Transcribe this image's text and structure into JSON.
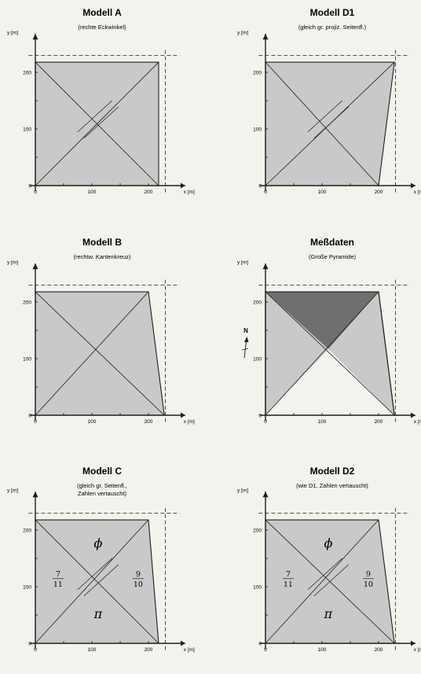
{
  "colors": {
    "fill": "#c9c9c9",
    "shade": "#6f6f6f",
    "white_face": "#f4f2ec",
    "line": "#1e1e1e"
  },
  "units": {
    "x_label": "x [m]",
    "y_label": "y [m]"
  },
  "ticks": {
    "x": [
      "0",
      "100",
      "200"
    ],
    "y": [
      "0",
      "100",
      "200"
    ]
  },
  "panels": [
    {
      "id": "modell-a",
      "title": "Modell A",
      "subtitle": [
        "(rechte Eckwinkel)"
      ],
      "corners": [
        [
          0,
          0
        ],
        [
          218,
          0
        ],
        [
          218,
          218
        ],
        [
          0,
          218
        ]
      ],
      "apex": [
        111,
        117
      ],
      "crossed": true,
      "shaded_face": null,
      "symbols": null,
      "north_arrow": false
    },
    {
      "id": "modell-d1",
      "title": "Modell D1",
      "subtitle": [
        "(gleich gr. projiz. Seitenfl.)"
      ],
      "corners": [
        [
          0,
          0
        ],
        [
          200,
          0
        ],
        [
          228,
          218
        ],
        [
          0,
          218
        ]
      ],
      "apex": [
        111,
        117
      ],
      "crossed": true,
      "shaded_face": null,
      "symbols": null,
      "north_arrow": false
    },
    {
      "id": "modell-b",
      "title": "Modell B",
      "subtitle": [
        "(rechtw. Kantenkreuz)"
      ],
      "corners": [
        [
          0,
          0
        ],
        [
          228,
          0
        ],
        [
          200,
          218
        ],
        [
          0,
          218
        ]
      ],
      "apex": [
        111,
        117
      ],
      "crossed": false,
      "shaded_face": null,
      "symbols": null,
      "north_arrow": false
    },
    {
      "id": "messdaten",
      "title": "Meßdaten",
      "subtitle": [
        "(Große Pyramide)"
      ],
      "corners": [
        [
          0,
          0
        ],
        [
          228,
          0
        ],
        [
          200,
          218
        ],
        [
          0,
          218
        ]
      ],
      "apex": [
        111,
        117
      ],
      "crossed": false,
      "shaded_face": "north",
      "white_face": "south",
      "symbols": null,
      "north_arrow": true,
      "north_label": "N"
    },
    {
      "id": "modell-c",
      "title": "Modell C",
      "subtitle": [
        "(gleich gr. Seitenfl.,",
        "Zahlen vertauscht)"
      ],
      "corners": [
        [
          0,
          0
        ],
        [
          218,
          0
        ],
        [
          200,
          218
        ],
        [
          0,
          218
        ]
      ],
      "apex": [
        111,
        117
      ],
      "crossed": true,
      "shaded_face": null,
      "symbols": {
        "top": "ϕ",
        "bottom": "π",
        "left": [
          "7",
          "11"
        ],
        "right": [
          "9",
          "10"
        ]
      },
      "north_arrow": false
    },
    {
      "id": "modell-d2",
      "title": "Modell D2",
      "subtitle": [
        "(wie D1, Zahlen vertauscht)"
      ],
      "corners": [
        [
          0,
          0
        ],
        [
          228,
          0
        ],
        [
          200,
          218
        ],
        [
          0,
          218
        ]
      ],
      "apex": [
        111,
        117
      ],
      "crossed": true,
      "shaded_face": null,
      "symbols": {
        "top": "ϕ",
        "bottom": "π",
        "left": [
          "7",
          "11"
        ],
        "right": [
          "9",
          "10"
        ]
      },
      "north_arrow": false
    }
  ]
}
